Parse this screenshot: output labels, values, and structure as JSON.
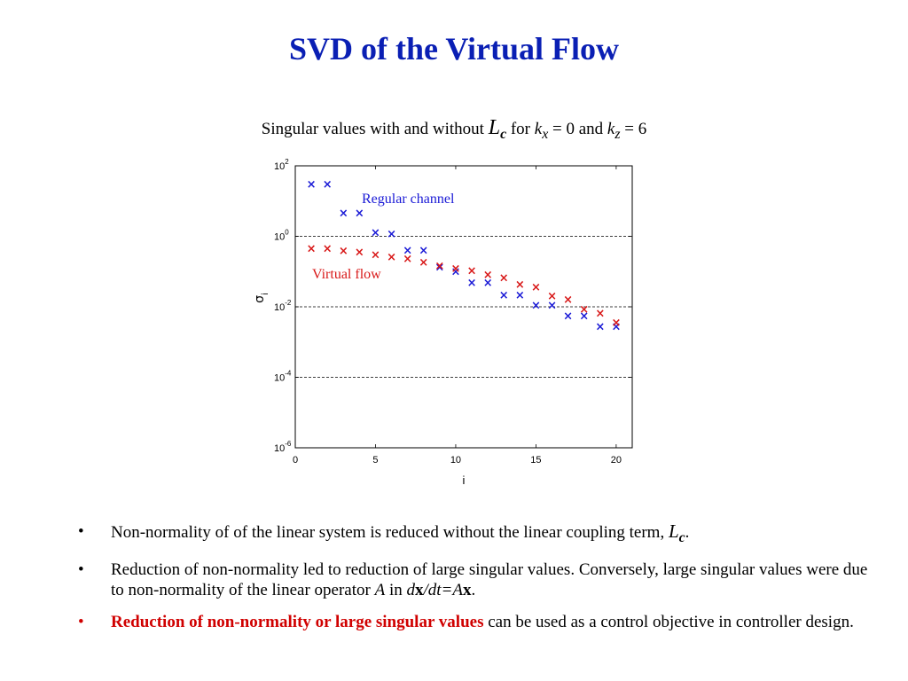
{
  "slide": {
    "title": "SVD of the Virtual Flow"
  },
  "caption": {
    "prefix": "Singular values with and without ",
    "lc_main": "L",
    "lc_sub": "c",
    "for_text": " for ",
    "k": "k",
    "kx_sub": "x",
    "kx_value": " = 0 and ",
    "kz_sub": "z",
    "kz_value": " = 6"
  },
  "colors": {
    "title": "#0a1fb4",
    "regular": "#1a1ad6",
    "virtual": "#d81818",
    "emphasis": "#d00000"
  },
  "chart_data": {
    "type": "scatter",
    "title": "",
    "xlabel": "i",
    "ylabel": "σ_i",
    "ylabel_main": "σ",
    "ylabel_sub": "i",
    "xlim": [
      0,
      21
    ],
    "ylim_log10": [
      -6,
      2
    ],
    "y_scale": "log",
    "x_ticks": [
      "0",
      "5",
      "10",
      "15",
      "20"
    ],
    "y_ticks": [
      {
        "base": "10",
        "exp": "2"
      },
      {
        "base": "10",
        "exp": "0"
      },
      {
        "base": "10",
        "exp": "-2"
      },
      {
        "base": "10",
        "exp": "-4"
      },
      {
        "base": "10",
        "exp": "-6"
      }
    ],
    "grid_lines_y": [
      0,
      -2,
      -4
    ],
    "marker": "×",
    "series": [
      {
        "name": "Regular channel",
        "x": [
          1,
          2,
          3,
          4,
          5,
          6,
          7,
          8,
          9,
          10,
          11,
          12,
          13,
          14,
          15,
          16,
          17,
          18,
          19,
          20
        ],
        "y": [
          30,
          30,
          4.5,
          4.5,
          1.25,
          1.15,
          0.4,
          0.4,
          0.13,
          0.1,
          0.048,
          0.048,
          0.021,
          0.021,
          0.011,
          0.011,
          0.0055,
          0.0055,
          0.0027,
          0.0027
        ]
      },
      {
        "name": "Virtual flow",
        "x": [
          1,
          2,
          3,
          4,
          5,
          6,
          7,
          8,
          9,
          10,
          11,
          12,
          13,
          14,
          15,
          16,
          17,
          18,
          19,
          20
        ],
        "y": [
          0.45,
          0.45,
          0.38,
          0.35,
          0.3,
          0.26,
          0.23,
          0.18,
          0.145,
          0.12,
          0.105,
          0.08,
          0.065,
          0.042,
          0.036,
          0.02,
          0.016,
          0.0085,
          0.0065,
          0.0035
        ]
      }
    ]
  },
  "bullets": {
    "b1_text": "Non-normality of of the linear system is reduced without the linear coupling term, ",
    "b1_l": "L",
    "b1_c": "c",
    "b1_end": ".",
    "b2_text": "Reduction of non-normality led to reduction of large singular values. Conversely, large singular values were due to non-normality of the linear operator ",
    "b2_a": "A",
    "b2_in": " in ",
    "b2_d": "d",
    "b2_x": "x",
    "b2_dt": "/dt=A",
    "b2_x2": "x",
    "b2_end": ".",
    "b3_red": "Reduction of non-normality or large singular values",
    "b3_rest": " can be used as a control objective in controller design.",
    "bullet_char": "•"
  }
}
